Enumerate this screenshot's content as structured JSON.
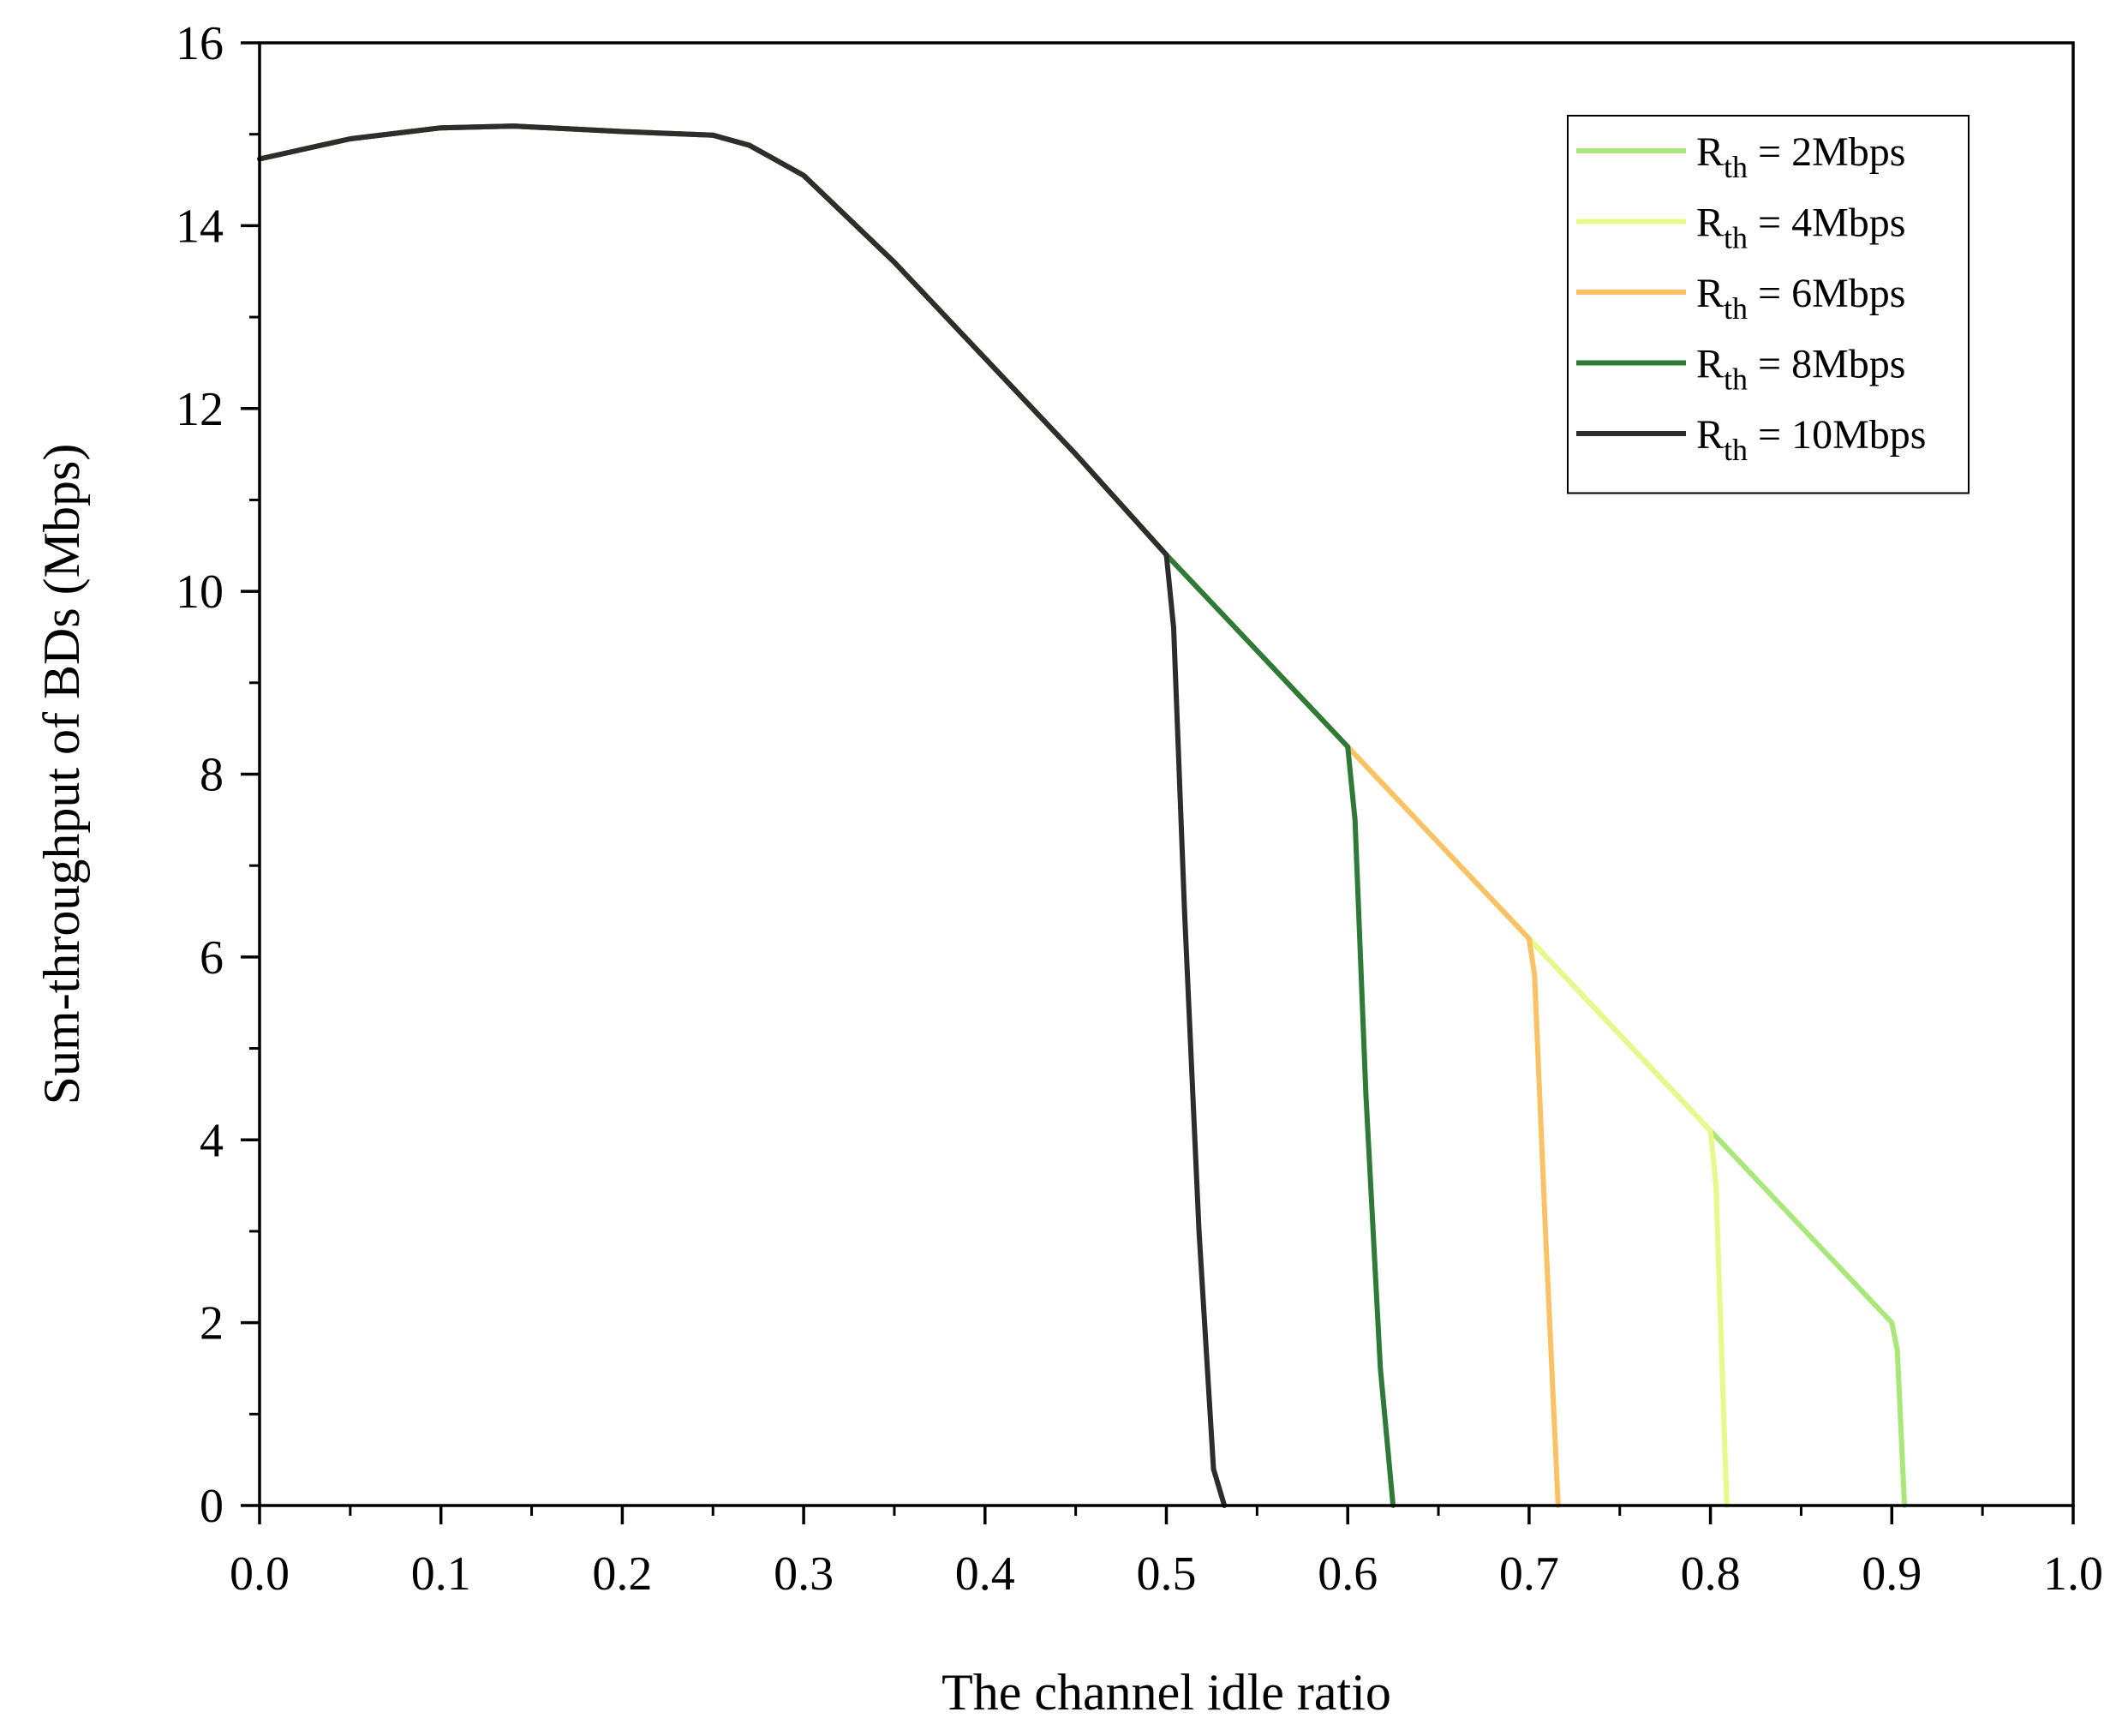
{
  "chart_data": {
    "type": "line",
    "title": "",
    "xlabel": "The channel idle ratio",
    "ylabel": "Sum-throughput of BDs (Mbps)",
    "xlim": [
      0.0,
      1.0
    ],
    "ylim": [
      0,
      16
    ],
    "xticks": [
      "0.0",
      "0.1",
      "0.2",
      "0.3",
      "0.4",
      "0.5",
      "0.6",
      "0.7",
      "0.8",
      "0.9",
      "1.0"
    ],
    "yticks": [
      "0",
      "2",
      "4",
      "6",
      "8",
      "10",
      "12",
      "14",
      "16"
    ],
    "grid": false,
    "legend_position": "top-right",
    "series": [
      {
        "name": "R_th = 2Mbps",
        "label_main": "R",
        "label_sub": "th",
        "label_rest": " = 2Mbps",
        "color": "#a9e77a",
        "x": [
          0.0,
          0.05,
          0.1,
          0.14,
          0.2,
          0.25,
          0.27,
          0.3,
          0.35,
          0.4,
          0.45,
          0.5,
          0.55,
          0.6,
          0.65,
          0.7,
          0.75,
          0.8,
          0.85,
          0.9,
          0.903,
          0.907
        ],
        "y": [
          14.73,
          14.95,
          15.07,
          15.09,
          15.03,
          14.99,
          14.88,
          14.55,
          13.6,
          12.55,
          11.5,
          10.4,
          9.35,
          8.3,
          7.25,
          6.2,
          5.15,
          4.1,
          3.05,
          2.0,
          1.7,
          0.0
        ]
      },
      {
        "name": "R_th = 4Mbps",
        "label_main": "R",
        "label_sub": "th",
        "label_rest": " = 4Mbps",
        "color": "#e6f98a",
        "x": [
          0.0,
          0.05,
          0.1,
          0.14,
          0.2,
          0.25,
          0.27,
          0.3,
          0.35,
          0.4,
          0.45,
          0.5,
          0.55,
          0.6,
          0.65,
          0.7,
          0.75,
          0.8,
          0.803,
          0.809
        ],
        "y": [
          14.73,
          14.95,
          15.07,
          15.09,
          15.03,
          14.99,
          14.88,
          14.55,
          13.6,
          12.55,
          11.5,
          10.4,
          9.35,
          8.3,
          7.25,
          6.2,
          5.15,
          4.1,
          3.5,
          0.0
        ]
      },
      {
        "name": "R_th = 6Mbps",
        "label_main": "R",
        "label_sub": "th",
        "label_rest": " = 6Mbps",
        "color": "#fbc265",
        "x": [
          0.0,
          0.05,
          0.1,
          0.14,
          0.2,
          0.25,
          0.27,
          0.3,
          0.35,
          0.4,
          0.45,
          0.5,
          0.55,
          0.6,
          0.65,
          0.7,
          0.703,
          0.709,
          0.716
        ],
        "y": [
          14.73,
          14.95,
          15.07,
          15.09,
          15.03,
          14.99,
          14.88,
          14.55,
          13.6,
          12.55,
          11.5,
          10.4,
          9.35,
          8.3,
          7.25,
          6.2,
          5.8,
          3.0,
          0.0
        ]
      },
      {
        "name": "R_th = 8Mbps",
        "label_main": "R",
        "label_sub": "th",
        "label_rest": " = 8Mbps",
        "color": "#2f7a38",
        "x": [
          0.0,
          0.05,
          0.1,
          0.14,
          0.2,
          0.25,
          0.27,
          0.3,
          0.35,
          0.4,
          0.45,
          0.5,
          0.55,
          0.6,
          0.604,
          0.61,
          0.618,
          0.625
        ],
        "y": [
          14.73,
          14.95,
          15.07,
          15.09,
          15.03,
          14.99,
          14.88,
          14.55,
          13.6,
          12.55,
          11.5,
          10.4,
          9.35,
          8.3,
          7.5,
          4.5,
          1.5,
          0.0
        ]
      },
      {
        "name": "R_th = 10Mbps",
        "label_main": "R",
        "label_sub": "th",
        "label_rest": " = 10Mbps",
        "color": "#2d2d2d",
        "x": [
          0.0,
          0.05,
          0.1,
          0.14,
          0.2,
          0.25,
          0.27,
          0.3,
          0.35,
          0.4,
          0.45,
          0.5,
          0.504,
          0.51,
          0.518,
          0.526,
          0.532
        ],
        "y": [
          14.73,
          14.95,
          15.07,
          15.09,
          15.03,
          14.99,
          14.88,
          14.55,
          13.6,
          12.55,
          11.5,
          10.4,
          9.6,
          6.5,
          3.0,
          0.4,
          0.0
        ]
      }
    ]
  }
}
